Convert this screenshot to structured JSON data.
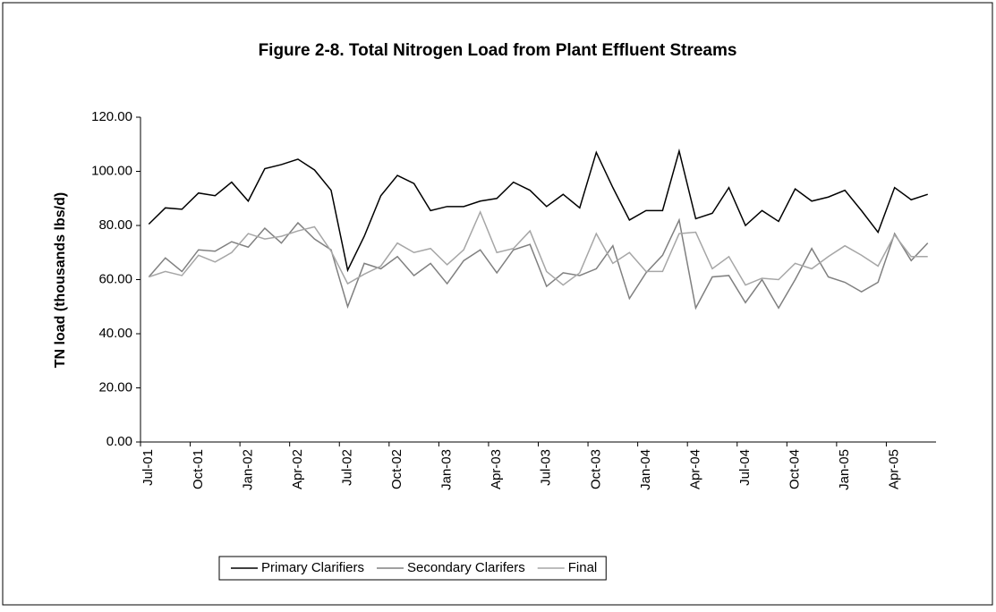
{
  "chart_data": {
    "type": "line",
    "title": "Figure 2-8.  Total Nitrogen Load from Plant Effluent Streams",
    "y_label": "TN load (thousands lbs/d)",
    "categories": [
      "Jul-01",
      null,
      null,
      "Oct-01",
      null,
      null,
      "Jan-02",
      null,
      null,
      "Apr-02",
      null,
      null,
      "Jul-02",
      null,
      null,
      "Oct-02",
      null,
      null,
      "Jan-03",
      null,
      null,
      "Apr-03",
      null,
      null,
      "Jul-03",
      null,
      null,
      "Oct-03",
      null,
      null,
      "Jan-04",
      null,
      null,
      "Apr-04",
      null,
      null,
      "Jul-04",
      null,
      null,
      "Oct-04",
      null,
      null,
      "Jan-05",
      null,
      null,
      "Apr-05",
      null,
      null
    ],
    "series": [
      {
        "name": "Primary Clarifiers",
        "color": "#000000",
        "values": [
          80.5,
          86.5,
          86,
          92,
          91,
          96,
          89,
          101,
          102.5,
          104.5,
          100.5,
          93,
          63.5,
          76,
          91,
          98.5,
          95.5,
          85.5,
          87,
          87,
          89,
          90,
          96,
          93,
          87,
          91.5,
          86.5,
          107,
          94,
          82,
          85.5,
          85.5,
          107.5,
          82.5,
          84.5,
          94,
          80,
          85.5,
          81.5,
          93.5,
          89,
          90.5,
          93,
          85.5,
          77.5,
          94,
          89.5,
          91.5
        ]
      },
      {
        "name": "Secondary Clarifers",
        "color": "#808080",
        "values": [
          61,
          68,
          63,
          71,
          70.5,
          74,
          72,
          79,
          73.5,
          81,
          75,
          71,
          50,
          66,
          64,
          68.5,
          61.5,
          66,
          58.5,
          67,
          71,
          62.5,
          71,
          73,
          57.5,
          62.5,
          61.5,
          64,
          72.5,
          53,
          62.5,
          69,
          82,
          49.5,
          61,
          61.5,
          51.5,
          60,
          49.5,
          60,
          71.5,
          61,
          59,
          55.5,
          59,
          77,
          67,
          73.5
        ]
      },
      {
        "name": "Final",
        "color": "#a6a6a6",
        "values": [
          61,
          63,
          61.5,
          69,
          66.5,
          70,
          77,
          75,
          76,
          78,
          79.5,
          70.5,
          58.5,
          62,
          65,
          73.5,
          70,
          71.5,
          65.5,
          71,
          85,
          70,
          71.5,
          78,
          63,
          58,
          62.5,
          77,
          66,
          70,
          63,
          63,
          77,
          77.5,
          64,
          68.5,
          58,
          60.5,
          60,
          66,
          64,
          68.5,
          72.5,
          69,
          65,
          76.5,
          68.5,
          68.5
        ]
      }
    ],
    "ylim": [
      0,
      120
    ],
    "yticks": [
      {
        "value": 0,
        "label": "0.00"
      },
      {
        "value": 20,
        "label": "20.00"
      },
      {
        "value": 40,
        "label": "40.00"
      },
      {
        "value": 60,
        "label": "60.00"
      },
      {
        "value": 80,
        "label": "80.00"
      },
      {
        "value": 100,
        "label": "100.00"
      },
      {
        "value": 120,
        "label": "120.00"
      }
    ],
    "grid": false,
    "legend": "bottom"
  }
}
